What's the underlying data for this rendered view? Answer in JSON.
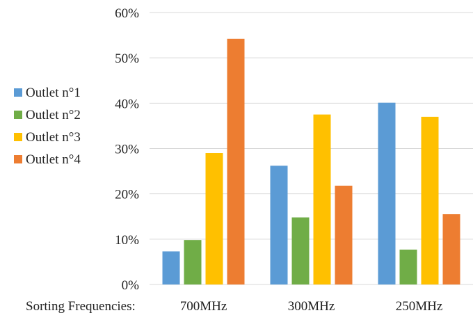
{
  "chart_data": {
    "type": "bar",
    "xlabel": "Sorting Frequencies:",
    "categories": [
      "700MHz",
      "300MHz",
      "250MHz"
    ],
    "series": [
      {
        "name": "Outlet n°1",
        "color": "#5b9bd5",
        "values": [
          7.3,
          26.2,
          40.1
        ]
      },
      {
        "name": "Outlet n°2",
        "color": "#70ad47",
        "values": [
          9.8,
          14.8,
          7.7
        ]
      },
      {
        "name": "Outlet n°3",
        "color": "#ffc000",
        "values": [
          29.0,
          37.5,
          37.0
        ]
      },
      {
        "name": "Outlet n°4",
        "color": "#ed7d31",
        "values": [
          54.2,
          21.8,
          15.5
        ]
      }
    ],
    "ylim": [
      0,
      60
    ],
    "yticks": [
      "0%",
      "10%",
      "20%",
      "30%",
      "40%",
      "50%",
      "60%"
    ],
    "grid": true,
    "legend_position": "left"
  }
}
